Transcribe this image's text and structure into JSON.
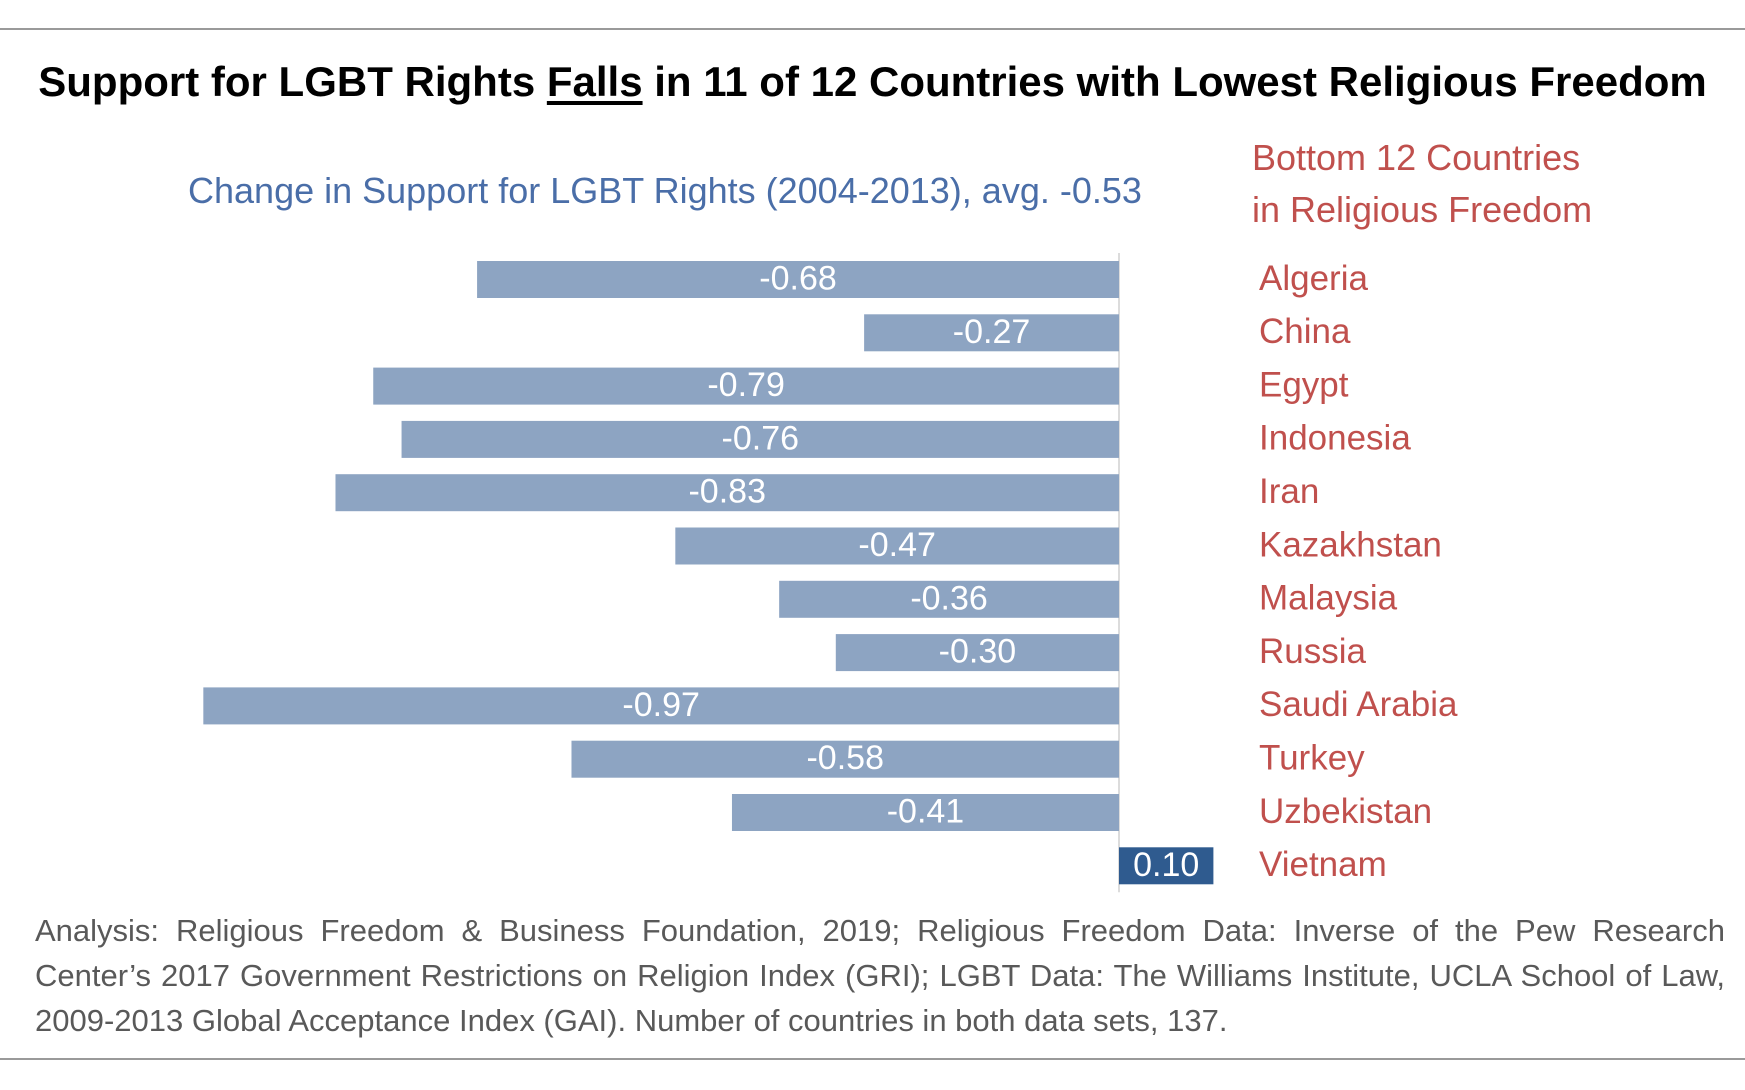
{
  "title": {
    "prefix": "Support for LGBT Rights ",
    "emphasis": "Falls",
    "suffix": " in 11 of 12 Countries with Lowest Religious Freedom"
  },
  "subtitle": "Change in Support for LGBT Rights (2004-2013), avg. -0.53",
  "country_header": {
    "line1": "Bottom 12 Countries",
    "line2": "in Religious Freedom"
  },
  "footnote": "Analysis: Religious Freedom & Business Foundation, 2019; Religious Freedom Data: Inverse of the Pew Research Center’s 2017 Government Restrictions on Religion Index (GRI); LGBT Data: The Williams Institute, UCLA School of Law, 2009-2013 Global Acceptance Index (GAI). Number of countries in both data sets, 137.",
  "colors": {
    "negative_bar": "#8da4c2",
    "positive_bar": "#2f5b8f",
    "country_text": "#c0504d",
    "subtitle_text": "#4a6ea8",
    "bar_label": "#ffffff"
  },
  "chart_data": {
    "type": "bar",
    "orientation": "horizontal",
    "categories": [
      "Algeria",
      "China",
      "Egypt",
      "Indonesia",
      "Iran",
      "Kazakhstan",
      "Malaysia",
      "Russia",
      "Saudi Arabia",
      "Turkey",
      "Uzbekistan",
      "Vietnam"
    ],
    "values": [
      -0.68,
      -0.27,
      -0.79,
      -0.76,
      -0.83,
      -0.47,
      -0.36,
      -0.3,
      -0.97,
      -0.58,
      -0.41,
      0.1
    ],
    "labels": [
      "-0.68",
      "-0.27",
      "-0.79",
      "-0.76",
      "-0.83",
      "-0.47",
      "-0.36",
      "-0.30",
      "-0.97",
      "-0.58",
      "-0.41",
      "0.10"
    ],
    "title": "Change in Support for LGBT Rights (2004-2013), avg. -0.53",
    "xlabel": "",
    "ylabel": "",
    "grid": false,
    "legend": "none"
  }
}
